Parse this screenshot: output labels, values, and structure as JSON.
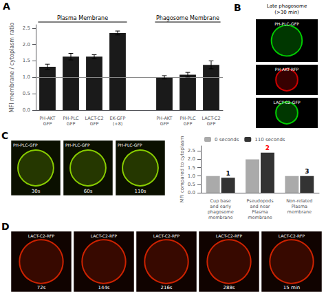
{
  "chart_data": [
    {
      "type": "bar",
      "title": "A",
      "categories": [
        "PH-AKT\nGFP",
        "PH-PLC\nGFP",
        "LACT-C2\nGFP",
        "EK-GFP\n(+8)",
        null,
        "PH-AKT\nGFP",
        "PH-PLC\nGFP",
        "LACT-C2\nGFP"
      ],
      "values": [
        1.32,
        1.63,
        1.63,
        2.35,
        null,
        1.0,
        1.08,
        1.38
      ],
      "errors": [
        0.08,
        0.1,
        0.06,
        0.06,
        null,
        0.05,
        0.07,
        0.12
      ],
      "color": "#1a1a1a",
      "annotations": [
        "Plasma Membrane",
        "Phagosome Membrane"
      ],
      "reference_line": {
        "value": 1.0,
        "color": "#888888"
      },
      "ylabel": "MFI membrane / cytoplasm ratio",
      "ylim": [
        0,
        2.6
      ],
      "yticks": [
        {
          "value": 0,
          "label": "0.0"
        },
        0.5,
        {
          "value": 1,
          "label": "1.0"
        },
        1.5,
        {
          "value": 2,
          "label": "2.0"
        },
        2.5
      ],
      "grid": false
    },
    {
      "type": "image",
      "title": "B",
      "subtitle": "Late phagosome\n(>30 min)",
      "labels": [
        "PH-PLC-GFP",
        "PH-AKT-RFP",
        "LACT-C2-GFP"
      ],
      "colors": [
        "#00cc00",
        "#cc0000",
        "#00cc00"
      ]
    },
    {
      "type": "image",
      "title": "C",
      "labels": [
        "30s",
        "60s",
        "110s"
      ],
      "annotations": [
        "PH-PLC-GFP"
      ],
      "color": "#88cc00"
    },
    {
      "type": "bar",
      "categories": [
        "Cup base\nand early\nphagosome\nmembrane",
        "Pseudopods\nand near\nPlasma\nmembrane",
        "Non-related\nPlasma\nmembrane"
      ],
      "series": [
        {
          "name": "0 seconds",
          "color": "#aaaaaa",
          "values": [
            1.0,
            2.0,
            1.0
          ]
        },
        {
          "name": "110 seconds",
          "color": "#333333",
          "values": [
            0.9,
            2.4,
            1.0
          ],
          "annotations": [
            {
              "text": "1",
              "color": "black"
            },
            {
              "text": "2",
              "color": "red"
            },
            {
              "text": "3",
              "color": "black"
            }
          ]
        }
      ],
      "ylabel": "MFI compared to cytoplasm",
      "ylim": [
        0,
        2.8
      ],
      "yticks": [
        {
          "value": 0,
          "label": "0.0"
        },
        0.5,
        {
          "value": 1,
          "label": "1.0"
        },
        1.5,
        {
          "value": 2,
          "label": "2.0"
        },
        2.5
      ],
      "legend": "upper left",
      "grid": false
    },
    {
      "type": "image",
      "title": "D",
      "labels": [
        "72s",
        "144s",
        "216s",
        "288s",
        "15 min"
      ],
      "annotations": [
        "LACT-C2-RFP"
      ],
      "color": "#cc2200"
    }
  ]
}
